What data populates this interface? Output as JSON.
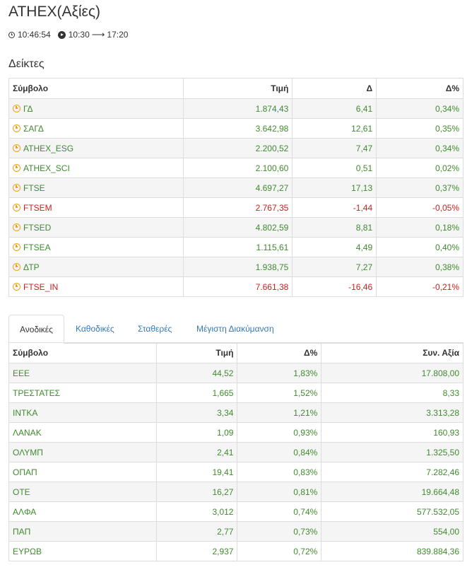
{
  "header": {
    "title": "ATHEX(Αξίες)",
    "current_time": "10:46:54",
    "session_start": "10:30",
    "session_end": "17:20"
  },
  "indices": {
    "section_title": "Δείκτες",
    "columns": [
      "Σύμβολο",
      "Τιμή",
      "Δ",
      "Δ%"
    ],
    "rows": [
      {
        "symbol": "ΓΔ",
        "price": "1.874,43",
        "change": "6,41",
        "pct": "0,34%",
        "dir": "up"
      },
      {
        "symbol": "ΣΑΓΔ",
        "price": "3.642,98",
        "change": "12,61",
        "pct": "0,35%",
        "dir": "up"
      },
      {
        "symbol": "ATHEX_ESG",
        "price": "2.200,52",
        "change": "7,47",
        "pct": "0,34%",
        "dir": "up"
      },
      {
        "symbol": "ATHEX_SCI",
        "price": "2.100,60",
        "change": "0,51",
        "pct": "0,02%",
        "dir": "up"
      },
      {
        "symbol": "FTSE",
        "price": "4.697,27",
        "change": "17,13",
        "pct": "0,37%",
        "dir": "up"
      },
      {
        "symbol": "FTSEM",
        "price": "2.767,35",
        "change": "-1,44",
        "pct": "-0,05%",
        "dir": "down"
      },
      {
        "symbol": "FTSED",
        "price": "4.802,59",
        "change": "8,81",
        "pct": "0,18%",
        "dir": "up"
      },
      {
        "symbol": "FTSEA",
        "price": "1.115,61",
        "change": "4,49",
        "pct": "0,40%",
        "dir": "up"
      },
      {
        "symbol": "ΔΤΡ",
        "price": "1.938,75",
        "change": "7,27",
        "pct": "0,38%",
        "dir": "up"
      },
      {
        "symbol": "FTSE_IN",
        "price": "7.661,38",
        "change": "-16,46",
        "pct": "-0,21%",
        "dir": "down"
      }
    ]
  },
  "tabs": [
    {
      "label": "Ανοδικές",
      "active": true
    },
    {
      "label": "Καθοδικές",
      "active": false
    },
    {
      "label": "Σταθερές",
      "active": false
    },
    {
      "label": "Μέγιστη Διακύμανση",
      "active": false
    }
  ],
  "movers": {
    "columns": [
      "Σύμβολο",
      "Τιμή",
      "Δ%",
      "Συν. Αξία"
    ],
    "rows": [
      {
        "symbol": "ΕΕΕ",
        "price": "44,52",
        "pct": "1,83%",
        "value": "17.808,00",
        "dir": "up"
      },
      {
        "symbol": "ΤΡΕΣΤΑΤΕΣ",
        "price": "1,665",
        "pct": "1,52%",
        "value": "8,33",
        "dir": "up"
      },
      {
        "symbol": "ΙΝΤΚΑ",
        "price": "3,34",
        "pct": "1,21%",
        "value": "3.313,28",
        "dir": "up"
      },
      {
        "symbol": "ΛΑΝΑΚ",
        "price": "1,09",
        "pct": "0,93%",
        "value": "160,93",
        "dir": "up"
      },
      {
        "symbol": "ΟΛΥΜΠ",
        "price": "2,41",
        "pct": "0,84%",
        "value": "1.325,50",
        "dir": "up"
      },
      {
        "symbol": "ΟΠΑΠ",
        "price": "19,41",
        "pct": "0,83%",
        "value": "7.282,46",
        "dir": "up"
      },
      {
        "symbol": "ΟΤΕ",
        "price": "16,27",
        "pct": "0,81%",
        "value": "19.664,48",
        "dir": "up"
      },
      {
        "symbol": "ΑΛΦΑ",
        "price": "3,012",
        "pct": "0,74%",
        "value": "577.532,05",
        "dir": "up"
      },
      {
        "symbol": "ΠΑΠ",
        "price": "2,77",
        "pct": "0,73%",
        "value": "554,00",
        "dir": "up"
      },
      {
        "symbol": "ΕΥΡΩΒ",
        "price": "2,937",
        "pct": "0,72%",
        "value": "839.884,36",
        "dir": "up"
      }
    ]
  },
  "colors": {
    "up": "#3f8b2e",
    "down": "#cc1f1f",
    "alarm_icon": "#f0a221",
    "link": "#337ab7"
  }
}
